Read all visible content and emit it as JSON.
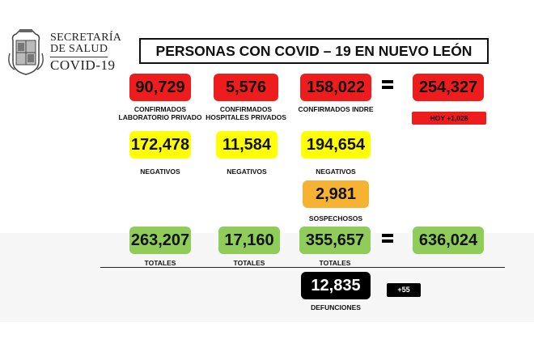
{
  "header": {
    "org_line1": "SECRETARÍA",
    "org_line2": "DE SALUD",
    "org_line3": "COVID-19",
    "title": "PERSONAS CON COVID – 19 EN NUEVO LEÓN"
  },
  "confirmed": {
    "lab_privado": {
      "value": "90,729",
      "label_1": "CONFIRMADOS",
      "label_2": "LABORATORIO PRIVADO"
    },
    "hosp_privados": {
      "value": "5,576",
      "label_1": "CONFIRMADOS",
      "label_2": "HOSPITALES PRIVADOS"
    },
    "indre": {
      "value": "158,022",
      "label": "CONFIRMADOS INDRE"
    },
    "total": {
      "value": "254,327"
    },
    "hoy": "HOY +1,028"
  },
  "negativos": {
    "lab_privado": {
      "value": "172,478",
      "label": "NEGATIVOS"
    },
    "hosp_privados": {
      "value": "11,584",
      "label": "NEGATIVOS"
    },
    "indre": {
      "value": "194,654",
      "label": "NEGATIVOS"
    }
  },
  "sospechosos": {
    "value": "2,981",
    "label": "SOSPECHOSOS"
  },
  "totales": {
    "lab_privado": {
      "value": "263,207",
      "label": "TOTALES"
    },
    "hosp_privados": {
      "value": "17,160",
      "label": "TOTALES"
    },
    "indre": {
      "value": "355,657",
      "label": "TOTALES"
    },
    "grand_total": {
      "value": "636,024"
    }
  },
  "defunciones": {
    "value": "12,835",
    "label": "DEFUNCIONES",
    "delta": "+55"
  },
  "colors": {
    "red": "#ee1c1c",
    "yellow": "#ffff00",
    "orange": "#f5b233",
    "green": "#8fcc5a",
    "black": "#000000"
  }
}
